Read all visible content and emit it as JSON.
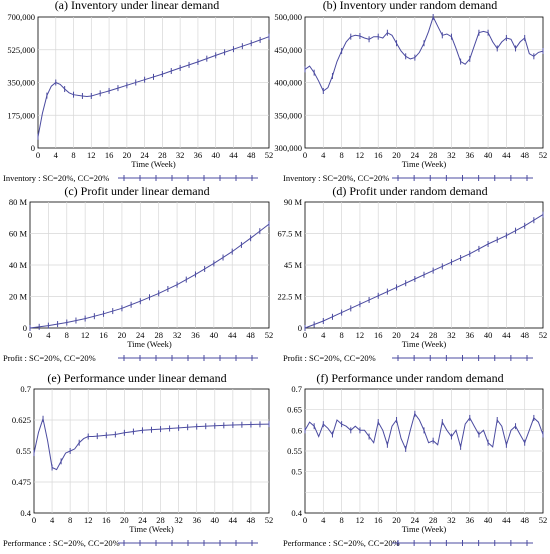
{
  "figure": {
    "panels": [
      {
        "title": "(a) Inventory under linear demand",
        "xlabel": "Time (Week)",
        "legend_label": "Inventory : SC=20%,  CC=20%"
      },
      {
        "title": "(b) Inventory under random demand",
        "xlabel": "Time (Week)",
        "legend_label": "Inventory : SC=20%,  CC=20%"
      },
      {
        "title": "(c) Profit under linear demand",
        "xlabel": "Time (Week)",
        "legend_label": "Profit : SC=20%,  CC=20%"
      },
      {
        "title": "(d) Profit under random demand",
        "xlabel": "Time (Week)",
        "legend_label": "Profit : SC=20%,  CC=20%"
      },
      {
        "title": "(e) Performance under linear demand",
        "xlabel": "Time (Week)",
        "legend_label": "Performance : SC=20%,  CC=20%"
      },
      {
        "title": "(f) Performance under random demand",
        "xlabel": "Time (Week)",
        "legend_label": "Performance : SC=20%,  CC=20%"
      }
    ]
  },
  "style": {
    "series_color": "#4b4ba0",
    "grid_color": "#d7d7d7"
  },
  "chart_data": [
    {
      "type": "line",
      "title": "(a) Inventory under linear demand",
      "xlabel": "Time (Week)",
      "ylabel": "",
      "xlim": [
        0,
        52
      ],
      "ylim": [
        0,
        700000
      ],
      "x_ticks": [
        0,
        4,
        8,
        12,
        16,
        20,
        24,
        28,
        32,
        36,
        40,
        44,
        48,
        52
      ],
      "y_ticks": [
        0,
        175000,
        350000,
        525000,
        700000
      ],
      "y_tick_labels": [
        "0",
        "175,000",
        "350,000",
        "525,000",
        "700,000"
      ],
      "grid": true,
      "legend": "below",
      "series": [
        {
          "name": "Inventory : SC=20%,  CC=20%",
          "x": [
            0,
            1,
            2,
            3,
            4,
            5,
            6,
            7,
            8,
            10,
            11,
            12,
            13,
            14,
            15,
            16,
            18,
            20,
            24,
            28,
            32,
            36,
            40,
            44,
            48,
            52
          ],
          "values": [
            60000,
            185000,
            280000,
            330000,
            350000,
            340000,
            315000,
            295000,
            285000,
            278000,
            275000,
            278000,
            285000,
            292000,
            298000,
            305000,
            320000,
            335000,
            365000,
            395000,
            428000,
            460000,
            495000,
            528000,
            560000,
            595000
          ]
        }
      ]
    },
    {
      "type": "line",
      "title": "(b) Inventory under random demand",
      "xlabel": "Time (Week)",
      "ylabel": "",
      "xlim": [
        0,
        52
      ],
      "ylim": [
        300000,
        500000
      ],
      "x_ticks": [
        0,
        4,
        8,
        12,
        16,
        20,
        24,
        28,
        32,
        36,
        40,
        44,
        48,
        52
      ],
      "y_ticks": [
        300000,
        350000,
        400000,
        450000,
        500000
      ],
      "y_tick_labels": [
        "300,000",
        "350,000",
        "400,000",
        "450,000",
        "500,000"
      ],
      "grid": true,
      "legend": "below",
      "series": [
        {
          "name": "Inventory : SC=20%,  CC=20%",
          "x": [
            0,
            1,
            2,
            3,
            4,
            5,
            6,
            7,
            8,
            9,
            10,
            11,
            12,
            13,
            14,
            15,
            16,
            17,
            18,
            19,
            20,
            21,
            22,
            23,
            24,
            25,
            26,
            27,
            28,
            29,
            30,
            31,
            32,
            33,
            34,
            35,
            36,
            37,
            38,
            39,
            40,
            41,
            42,
            43,
            44,
            45,
            46,
            47,
            48,
            49,
            50,
            51,
            52
          ],
          "values": [
            420000,
            425000,
            415000,
            402000,
            387000,
            392000,
            410000,
            432000,
            448000,
            462000,
            470000,
            472000,
            471000,
            468000,
            466000,
            470000,
            470000,
            468000,
            476000,
            472000,
            460000,
            448000,
            440000,
            436000,
            438000,
            446000,
            460000,
            478000,
            500000,
            486000,
            472000,
            474000,
            470000,
            452000,
            432000,
            428000,
            436000,
            456000,
            476000,
            478000,
            476000,
            462000,
            452000,
            462000,
            468000,
            466000,
            452000,
            462000,
            468000,
            444000,
            440000,
            446000,
            448000
          ]
        }
      ]
    },
    {
      "type": "line",
      "title": "(c) Profit under linear demand",
      "xlabel": "Time (Week)",
      "ylabel": "",
      "xlim": [
        0,
        52
      ],
      "ylim": [
        0,
        80
      ],
      "x_ticks": [
        0,
        4,
        8,
        12,
        16,
        20,
        24,
        28,
        32,
        36,
        40,
        44,
        48,
        52
      ],
      "y_ticks": [
        0,
        20,
        40,
        60,
        80
      ],
      "y_tick_labels": [
        "0",
        "20 M",
        "40 M",
        "60 M",
        "80 M"
      ],
      "grid": true,
      "legend": "below",
      "series": [
        {
          "name": "Profit : SC=20%,  CC=20%",
          "x": [
            0,
            4,
            8,
            12,
            16,
            20,
            24,
            28,
            32,
            36,
            40,
            44,
            48,
            52
          ],
          "values": [
            0,
            1.5,
            3.5,
            6,
            9,
            12.5,
            17,
            22,
            27.5,
            34,
            41,
            48.5,
            57,
            66
          ]
        }
      ]
    },
    {
      "type": "line",
      "title": "(d) Profit under random demand",
      "xlabel": "Time (Week)",
      "ylabel": "",
      "xlim": [
        0,
        52
      ],
      "ylim": [
        0,
        90
      ],
      "x_ticks": [
        0,
        4,
        8,
        12,
        16,
        20,
        24,
        28,
        32,
        36,
        40,
        44,
        48,
        52
      ],
      "y_ticks": [
        0,
        22.5,
        45,
        67.5,
        90
      ],
      "y_tick_labels": [
        "0",
        "22.5 M",
        "45 M",
        "67.5 M",
        "90 M"
      ],
      "grid": true,
      "legend": "below",
      "series": [
        {
          "name": "Profit : SC=20%,  CC=20%",
          "x": [
            0,
            4,
            8,
            12,
            16,
            20,
            24,
            28,
            32,
            36,
            40,
            44,
            48,
            52
          ],
          "values": [
            0,
            5,
            11,
            17,
            23,
            29,
            35,
            41,
            47,
            53,
            60,
            66,
            73,
            81
          ]
        }
      ]
    },
    {
      "type": "line",
      "title": "(e) Performance under linear demand",
      "xlabel": "Time (Week)",
      "ylabel": "",
      "xlim": [
        0,
        52
      ],
      "ylim": [
        0.4,
        0.7
      ],
      "x_ticks": [
        0,
        4,
        8,
        12,
        16,
        20,
        24,
        28,
        32,
        36,
        40,
        44,
        48,
        52
      ],
      "y_ticks": [
        0.4,
        0.475,
        0.55,
        0.625,
        0.7
      ],
      "y_tick_labels": [
        "0.4",
        "0.475",
        "0.55",
        "0.625",
        "0.7"
      ],
      "grid": true,
      "legend": "below",
      "series": [
        {
          "name": "Performance : SC=20%,  CC=20%",
          "x": [
            0,
            1,
            2,
            3,
            4,
            5,
            6,
            7,
            8,
            9,
            10,
            11,
            12,
            13,
            14,
            16,
            18,
            20,
            24,
            28,
            32,
            36,
            40,
            44,
            48,
            52
          ],
          "values": [
            0.545,
            0.595,
            0.628,
            0.575,
            0.51,
            0.505,
            0.525,
            0.545,
            0.55,
            0.555,
            0.57,
            0.58,
            0.585,
            0.585,
            0.586,
            0.588,
            0.59,
            0.594,
            0.6,
            0.603,
            0.606,
            0.609,
            0.611,
            0.613,
            0.614,
            0.615
          ]
        }
      ]
    },
    {
      "type": "line",
      "title": "(f) Performance under random demand",
      "xlabel": "Time (Week)",
      "ylabel": "",
      "xlim": [
        0,
        52
      ],
      "ylim": [
        0.4,
        0.7
      ],
      "x_ticks": [
        0,
        4,
        8,
        12,
        16,
        20,
        24,
        28,
        32,
        36,
        40,
        44,
        48,
        52
      ],
      "y_ticks": [
        0.4,
        0.45,
        0.5,
        0.55,
        0.6,
        0.65,
        0.7
      ],
      "y_tick_labels": [
        "0.4",
        "",
        "0.5",
        "0.55",
        "0.6",
        "0.65",
        "0.7"
      ],
      "grid": true,
      "legend": "below",
      "series": [
        {
          "name": "Performance : SC=20%,  CC=20%",
          "x": [
            0,
            1,
            2,
            3,
            4,
            5,
            6,
            7,
            8,
            9,
            10,
            11,
            12,
            13,
            14,
            15,
            16,
            17,
            18,
            19,
            20,
            21,
            22,
            23,
            24,
            25,
            26,
            27,
            28,
            29,
            30,
            31,
            32,
            33,
            34,
            35,
            36,
            37,
            38,
            39,
            40,
            41,
            42,
            43,
            44,
            45,
            46,
            47,
            48,
            49,
            50,
            51,
            52
          ],
          "values": [
            0.6,
            0.62,
            0.61,
            0.585,
            0.615,
            0.605,
            0.59,
            0.625,
            0.615,
            0.61,
            0.6,
            0.61,
            0.6,
            0.6,
            0.585,
            0.57,
            0.62,
            0.6,
            0.565,
            0.61,
            0.625,
            0.58,
            0.555,
            0.6,
            0.64,
            0.625,
            0.6,
            0.57,
            0.575,
            0.565,
            0.62,
            0.6,
            0.585,
            0.6,
            0.56,
            0.615,
            0.63,
            0.61,
            0.59,
            0.6,
            0.57,
            0.56,
            0.625,
            0.61,
            0.565,
            0.6,
            0.61,
            0.59,
            0.57,
            0.6,
            0.63,
            0.62,
            0.59
          ]
        }
      ]
    }
  ]
}
